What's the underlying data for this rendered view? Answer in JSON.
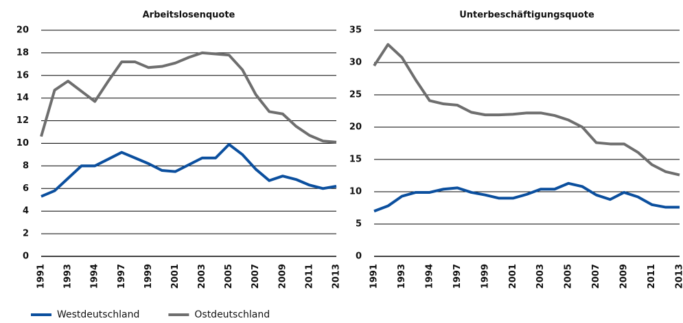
{
  "chart_data": [
    {
      "type": "line",
      "title": "Arbeitslosenquote",
      "categories": [
        "1991",
        null,
        "1993",
        null,
        "1994",
        null,
        "1997",
        null,
        "1999",
        null,
        "2001",
        null,
        "2003",
        null,
        "2005",
        null,
        "2007",
        null,
        "2009",
        null,
        "2011",
        null,
        "2013"
      ],
      "series": [
        {
          "name": "Westdeutschland",
          "color": "#0b4f9e",
          "values": [
            5.3,
            5.8,
            6.9,
            8.0,
            8.0,
            8.6,
            9.2,
            8.7,
            8.2,
            7.6,
            7.5,
            8.1,
            8.7,
            8.7,
            9.9,
            9.0,
            7.7,
            6.7,
            7.1,
            6.8,
            6.3,
            6.0,
            6.2
          ]
        },
        {
          "name": "Ostdeutschland",
          "color": "#6e6e6e",
          "values": [
            10.6,
            14.7,
            15.5,
            14.6,
            13.7,
            15.5,
            17.2,
            17.2,
            16.7,
            16.8,
            17.1,
            17.6,
            18.0,
            17.9,
            17.8,
            16.5,
            14.3,
            12.8,
            12.6,
            11.5,
            10.7,
            10.2,
            10.1
          ]
        }
      ],
      "ylim": [
        0,
        20
      ],
      "yticks": [
        0,
        2,
        4,
        6,
        8,
        10,
        12,
        14,
        16,
        18,
        20
      ],
      "grid": true
    },
    {
      "type": "line",
      "title": "Unterbeschäftigungsquote",
      "categories": [
        "1991",
        null,
        "1993",
        null,
        "1994",
        null,
        "1997",
        null,
        "1999",
        null,
        "2001",
        null,
        "2003",
        null,
        "2005",
        null,
        "2007",
        null,
        "2009",
        null,
        "2011",
        null,
        "2013"
      ],
      "series": [
        {
          "color": "#0b4f9e",
          "values": [
            7.0,
            7.8,
            9.3,
            9.9,
            9.9,
            10.4,
            10.6,
            9.9,
            9.5,
            9.0,
            9.0,
            9.6,
            10.4,
            10.4,
            11.3,
            10.8,
            9.5,
            8.8,
            9.9,
            9.2,
            8.0,
            7.6,
            7.6
          ]
        },
        {
          "color": "#6e6e6e",
          "values": [
            29.5,
            32.8,
            30.8,
            27.3,
            24.1,
            23.6,
            23.4,
            22.3,
            21.9,
            21.9,
            22.0,
            22.2,
            22.2,
            21.8,
            21.1,
            20.0,
            17.6,
            17.4,
            17.4,
            16.1,
            14.2,
            13.1,
            12.6
          ]
        }
      ],
      "ylim": [
        0,
        35
      ],
      "yticks": [
        0,
        5,
        10,
        15,
        20,
        25,
        30,
        35
      ],
      "grid": true
    }
  ]
}
